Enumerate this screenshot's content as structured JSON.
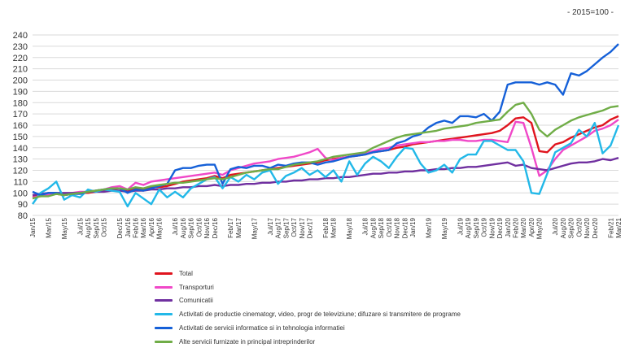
{
  "note": "- 2015=100 -",
  "chart_data": {
    "type": "line",
    "title": "",
    "xlabel": "",
    "ylabel": "",
    "ylim": [
      80,
      240
    ],
    "yticks": [
      80,
      90,
      100,
      110,
      120,
      130,
      140,
      150,
      160,
      170,
      180,
      190,
      200,
      210,
      220,
      230,
      240
    ],
    "grid": true,
    "legend_position": "bottom",
    "x": [
      "Jan/15",
      "Feb/15",
      "Mar/15",
      "Apr/15",
      "May/15",
      "Jun/15",
      "Jul/15",
      "Aug/15",
      "Sep/15",
      "Oct/15",
      "Nov/15",
      "Dec/15",
      "Jan/16",
      "Feb/16",
      "Mar/16",
      "Apr/16",
      "May/16",
      "Jun/16",
      "Jul/16",
      "Aug/16",
      "Sep/16",
      "Oct/16",
      "Nov/16",
      "Dec/16",
      "Jan/17",
      "Feb/17",
      "Mar/17",
      "Apr/17",
      "May/17",
      "Jun/17",
      "Jul/17",
      "Aug/17",
      "Sep/17",
      "Oct/17",
      "Nov/17",
      "Dec/17",
      "Jan/18",
      "Feb/18",
      "Mar/18",
      "Apr/18",
      "May/18",
      "Jun/18",
      "Jul/18",
      "Aug/18",
      "Sep/18",
      "Oct/18",
      "Nov/18",
      "Dec/18",
      "Jan/19",
      "Feb/19",
      "Mar/19",
      "Apr/19",
      "May/19",
      "Jun/19",
      "Jul/19",
      "Aug/19",
      "Sep/19",
      "Oct/19",
      "Nov/19",
      "Dec/19",
      "Jan/20",
      "Feb/20",
      "Mar/20",
      "Apr/20",
      "May/20",
      "Jun/20",
      "Jul/20",
      "Aug/20",
      "Sep/20",
      "Oct/20",
      "Nov/20",
      "Dec/20",
      "Jan/21",
      "Feb/21",
      "Mar/21"
    ],
    "x_tick_labels": [
      "Jan/15",
      "Mar/15",
      "May/15",
      "Jul/15",
      "Aug/15",
      "Sep/15",
      "Oct/15",
      "Dec/15",
      "Jan/16",
      "Feb/16",
      "Mar/16",
      "Apr/16",
      "May/16",
      "Jul/16",
      "Aug/16",
      "Sep/16",
      "Oct/16",
      "Nov/16",
      "Dec/16",
      "Feb/17",
      "Mar/17",
      "May/17",
      "Jul/17",
      "Aug/17",
      "Sep/17",
      "Oct/17",
      "Nov/17",
      "Dec/17",
      "Feb/18",
      "Mar/18",
      "May/18",
      "Jul/18",
      "Aug/18",
      "Sep/18",
      "Oct/18",
      "Nov/18",
      "Dec/18",
      "Jan/19",
      "Mar/19",
      "May/19",
      "Jul/19",
      "Aug/19",
      "Sep/19",
      "Oct/19",
      "Nov/19",
      "Dec/19",
      "Jan/20",
      "Feb/20",
      "Mar/20",
      "Apr/20",
      "May/20",
      "Jul/20",
      "Aug/20",
      "Sep/20",
      "Oct/20",
      "Nov/20",
      "Dec/20",
      "Feb/21",
      "Mar/21"
    ],
    "series": [
      {
        "name": "Total",
        "color": "#e0141e",
        "values": [
          97,
          97,
          98,
          99,
          98,
          99,
          100,
          100,
          101,
          102,
          103,
          104,
          102,
          104,
          103,
          105,
          105,
          106,
          108,
          110,
          111,
          112,
          113,
          115,
          113,
          116,
          117,
          118,
          119,
          120,
          121,
          122,
          123,
          124,
          125,
          126,
          127,
          129,
          130,
          131,
          132,
          133,
          134,
          136,
          137,
          138,
          140,
          141,
          143,
          144,
          145,
          146,
          147,
          148,
          149,
          150,
          151,
          152,
          153,
          155,
          160,
          166,
          167,
          162,
          137,
          136,
          143,
          145,
          149,
          152,
          155,
          158,
          160,
          165,
          168
        ]
      },
      {
        "name": "Transporturi",
        "color": "#f048c8",
        "values": [
          96,
          97,
          98,
          100,
          99,
          100,
          101,
          101,
          102,
          103,
          105,
          106,
          103,
          109,
          107,
          110,
          111,
          112,
          113,
          114,
          115,
          116,
          117,
          118,
          116,
          120,
          122,
          124,
          126,
          127,
          128,
          130,
          131,
          132,
          134,
          136,
          139,
          131,
          129,
          131,
          132,
          134,
          135,
          137,
          139,
          140,
          142,
          143,
          144,
          145,
          145,
          146,
          146,
          147,
          147,
          146,
          146,
          147,
          147,
          146,
          145,
          163,
          162,
          140,
          115,
          120,
          130,
          138,
          142,
          146,
          150,
          155,
          157,
          160,
          165
        ]
      },
      {
        "name": "Comunicatii",
        "color": "#7030a0",
        "values": [
          98,
          99,
          100,
          100,
          100,
          100,
          100,
          101,
          101,
          101,
          102,
          102,
          101,
          102,
          102,
          103,
          103,
          104,
          104,
          105,
          105,
          106,
          106,
          107,
          106,
          107,
          107,
          108,
          108,
          109,
          109,
          110,
          110,
          111,
          111,
          112,
          112,
          113,
          113,
          114,
          114,
          115,
          116,
          117,
          117,
          118,
          118,
          119,
          119,
          120,
          120,
          121,
          121,
          122,
          122,
          123,
          123,
          124,
          125,
          126,
          127,
          124,
          125,
          122,
          121,
          120,
          122,
          124,
          126,
          127,
          127,
          128,
          130,
          129,
          131
        ]
      },
      {
        "name": "Activitati de productie cinematogr, video, progr de televiziune; difuzare si transmitere de programe",
        "color": "#22b8e8",
        "values": [
          90,
          100,
          104,
          110,
          94,
          98,
          96,
          103,
          101,
          103,
          102,
          101,
          88,
          100,
          95,
          90,
          103,
          96,
          101,
          96,
          104,
          108,
          112,
          114,
          104,
          114,
          110,
          116,
          112,
          118,
          120,
          108,
          115,
          118,
          122,
          116,
          120,
          114,
          120,
          110,
          128,
          116,
          126,
          132,
          128,
          122,
          132,
          140,
          139,
          126,
          118,
          120,
          125,
          118,
          130,
          134,
          134,
          146,
          146,
          142,
          138,
          138,
          128,
          100,
          99,
          117,
          136,
          140,
          144,
          156,
          150,
          162,
          135,
          142,
          160
        ]
      },
      {
        "name": "Activitati de servicii informatice si in tehnologia informatiei",
        "color": "#1560d8",
        "values": [
          101,
          98,
          100,
          100,
          98,
          99,
          99,
          101,
          102,
          103,
          104,
          104,
          100,
          103,
          102,
          104,
          106,
          108,
          120,
          122,
          122,
          124,
          125,
          125,
          108,
          121,
          123,
          122,
          124,
          124,
          122,
          125,
          124,
          126,
          127,
          127,
          125,
          127,
          128,
          130,
          132,
          133,
          134,
          136,
          137,
          138,
          144,
          146,
          150,
          152,
          158,
          162,
          164,
          162,
          168,
          168,
          167,
          170,
          164,
          172,
          196,
          198,
          198,
          198,
          196,
          198,
          196,
          187,
          206,
          204,
          208,
          214,
          220,
          225,
          232
        ]
      },
      {
        "name": "Alte servicii furnizate in principal intreprinderilor",
        "color": "#70ad47",
        "values": [
          95,
          97,
          97,
          99,
          98,
          99,
          100,
          101,
          102,
          103,
          104,
          104,
          103,
          105,
          104,
          106,
          107,
          108,
          109,
          109,
          110,
          111,
          112,
          113,
          112,
          114,
          116,
          118,
          119,
          120,
          121,
          121,
          123,
          125,
          126,
          127,
          128,
          130,
          132,
          133,
          134,
          135,
          136,
          140,
          143,
          146,
          149,
          151,
          152,
          153,
          154,
          155,
          157,
          158,
          159,
          160,
          162,
          163,
          164,
          165,
          172,
          178,
          180,
          170,
          156,
          150,
          156,
          160,
          164,
          167,
          169,
          171,
          173,
          176,
          177
        ]
      }
    ]
  }
}
